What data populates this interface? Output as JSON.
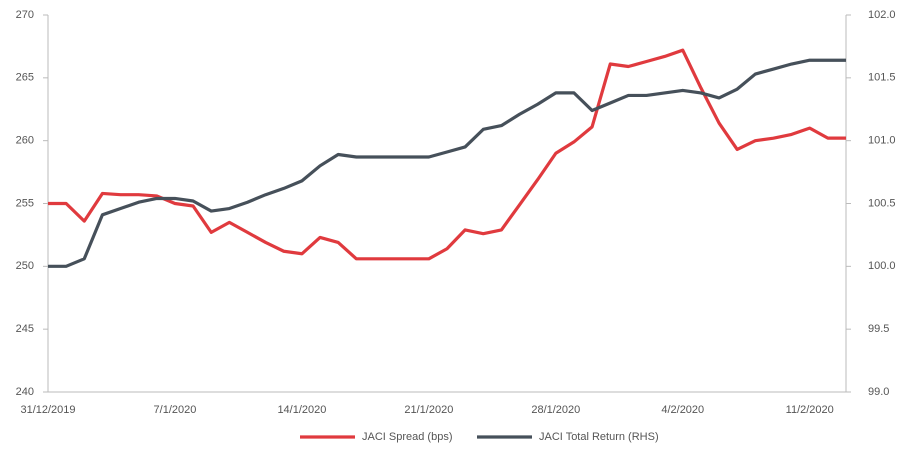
{
  "chart_data": {
    "type": "line",
    "categories": [
      "31/12/2019",
      null,
      null,
      null,
      null,
      null,
      null,
      "7/1/2020",
      null,
      null,
      null,
      null,
      null,
      null,
      "14/1/2020",
      null,
      null,
      null,
      null,
      null,
      null,
      "21/1/2020",
      null,
      null,
      null,
      null,
      null,
      null,
      "28/1/2020",
      null,
      null,
      null,
      null,
      null,
      null,
      "4/2/2020",
      null,
      null,
      null,
      null,
      null,
      null,
      "11/2/2020",
      null,
      null
    ],
    "series": [
      {
        "name": "JACI Spread (bps)",
        "color": "#e03a3e",
        "values": [
          255.0,
          255.0,
          253.6,
          255.8,
          255.7,
          255.7,
          255.6,
          255.0,
          254.8,
          252.7,
          253.5,
          252.7,
          251.9,
          251.2,
          251.0,
          252.3,
          251.9,
          250.6,
          250.6,
          250.6,
          250.6,
          250.6,
          251.4,
          252.9,
          252.6,
          252.9,
          254.9,
          256.9,
          259.0,
          259.9,
          261.1,
          266.1,
          265.9,
          266.3,
          266.7,
          267.2,
          264.2,
          261.4,
          259.3,
          260.0,
          260.2,
          260.5,
          261.0,
          260.2,
          260.2
        ]
      },
      {
        "name": "JACI Total Return (RHS)",
        "color": "#46505a",
        "axis": "y2",
        "values": [
          100.0,
          100.0,
          100.06,
          100.41,
          100.46,
          100.51,
          100.54,
          100.54,
          100.52,
          100.44,
          100.46,
          100.51,
          100.57,
          100.62,
          100.68,
          100.8,
          100.89,
          100.87,
          100.87,
          100.87,
          100.87,
          100.87,
          100.91,
          100.95,
          101.09,
          101.12,
          101.21,
          101.29,
          101.38,
          101.38,
          101.24,
          101.3,
          101.36,
          101.36,
          101.38,
          101.4,
          101.38,
          101.34,
          101.41,
          101.53,
          101.57,
          101.61,
          101.64,
          101.64,
          101.64
        ]
      }
    ],
    "ylim": [
      240,
      270
    ],
    "yticks": [
      240,
      245,
      250,
      255,
      260,
      265,
      270
    ],
    "y2lim": [
      99,
      102
    ],
    "y2ticks": [
      {
        "value": 99,
        "label": "99.0"
      },
      99.5,
      {
        "value": 100,
        "label": "100.0"
      },
      100.5,
      {
        "value": 101,
        "label": "101.0"
      },
      101.5,
      {
        "value": 102,
        "label": "102.0"
      }
    ],
    "grid": false,
    "legend": "bottom"
  }
}
